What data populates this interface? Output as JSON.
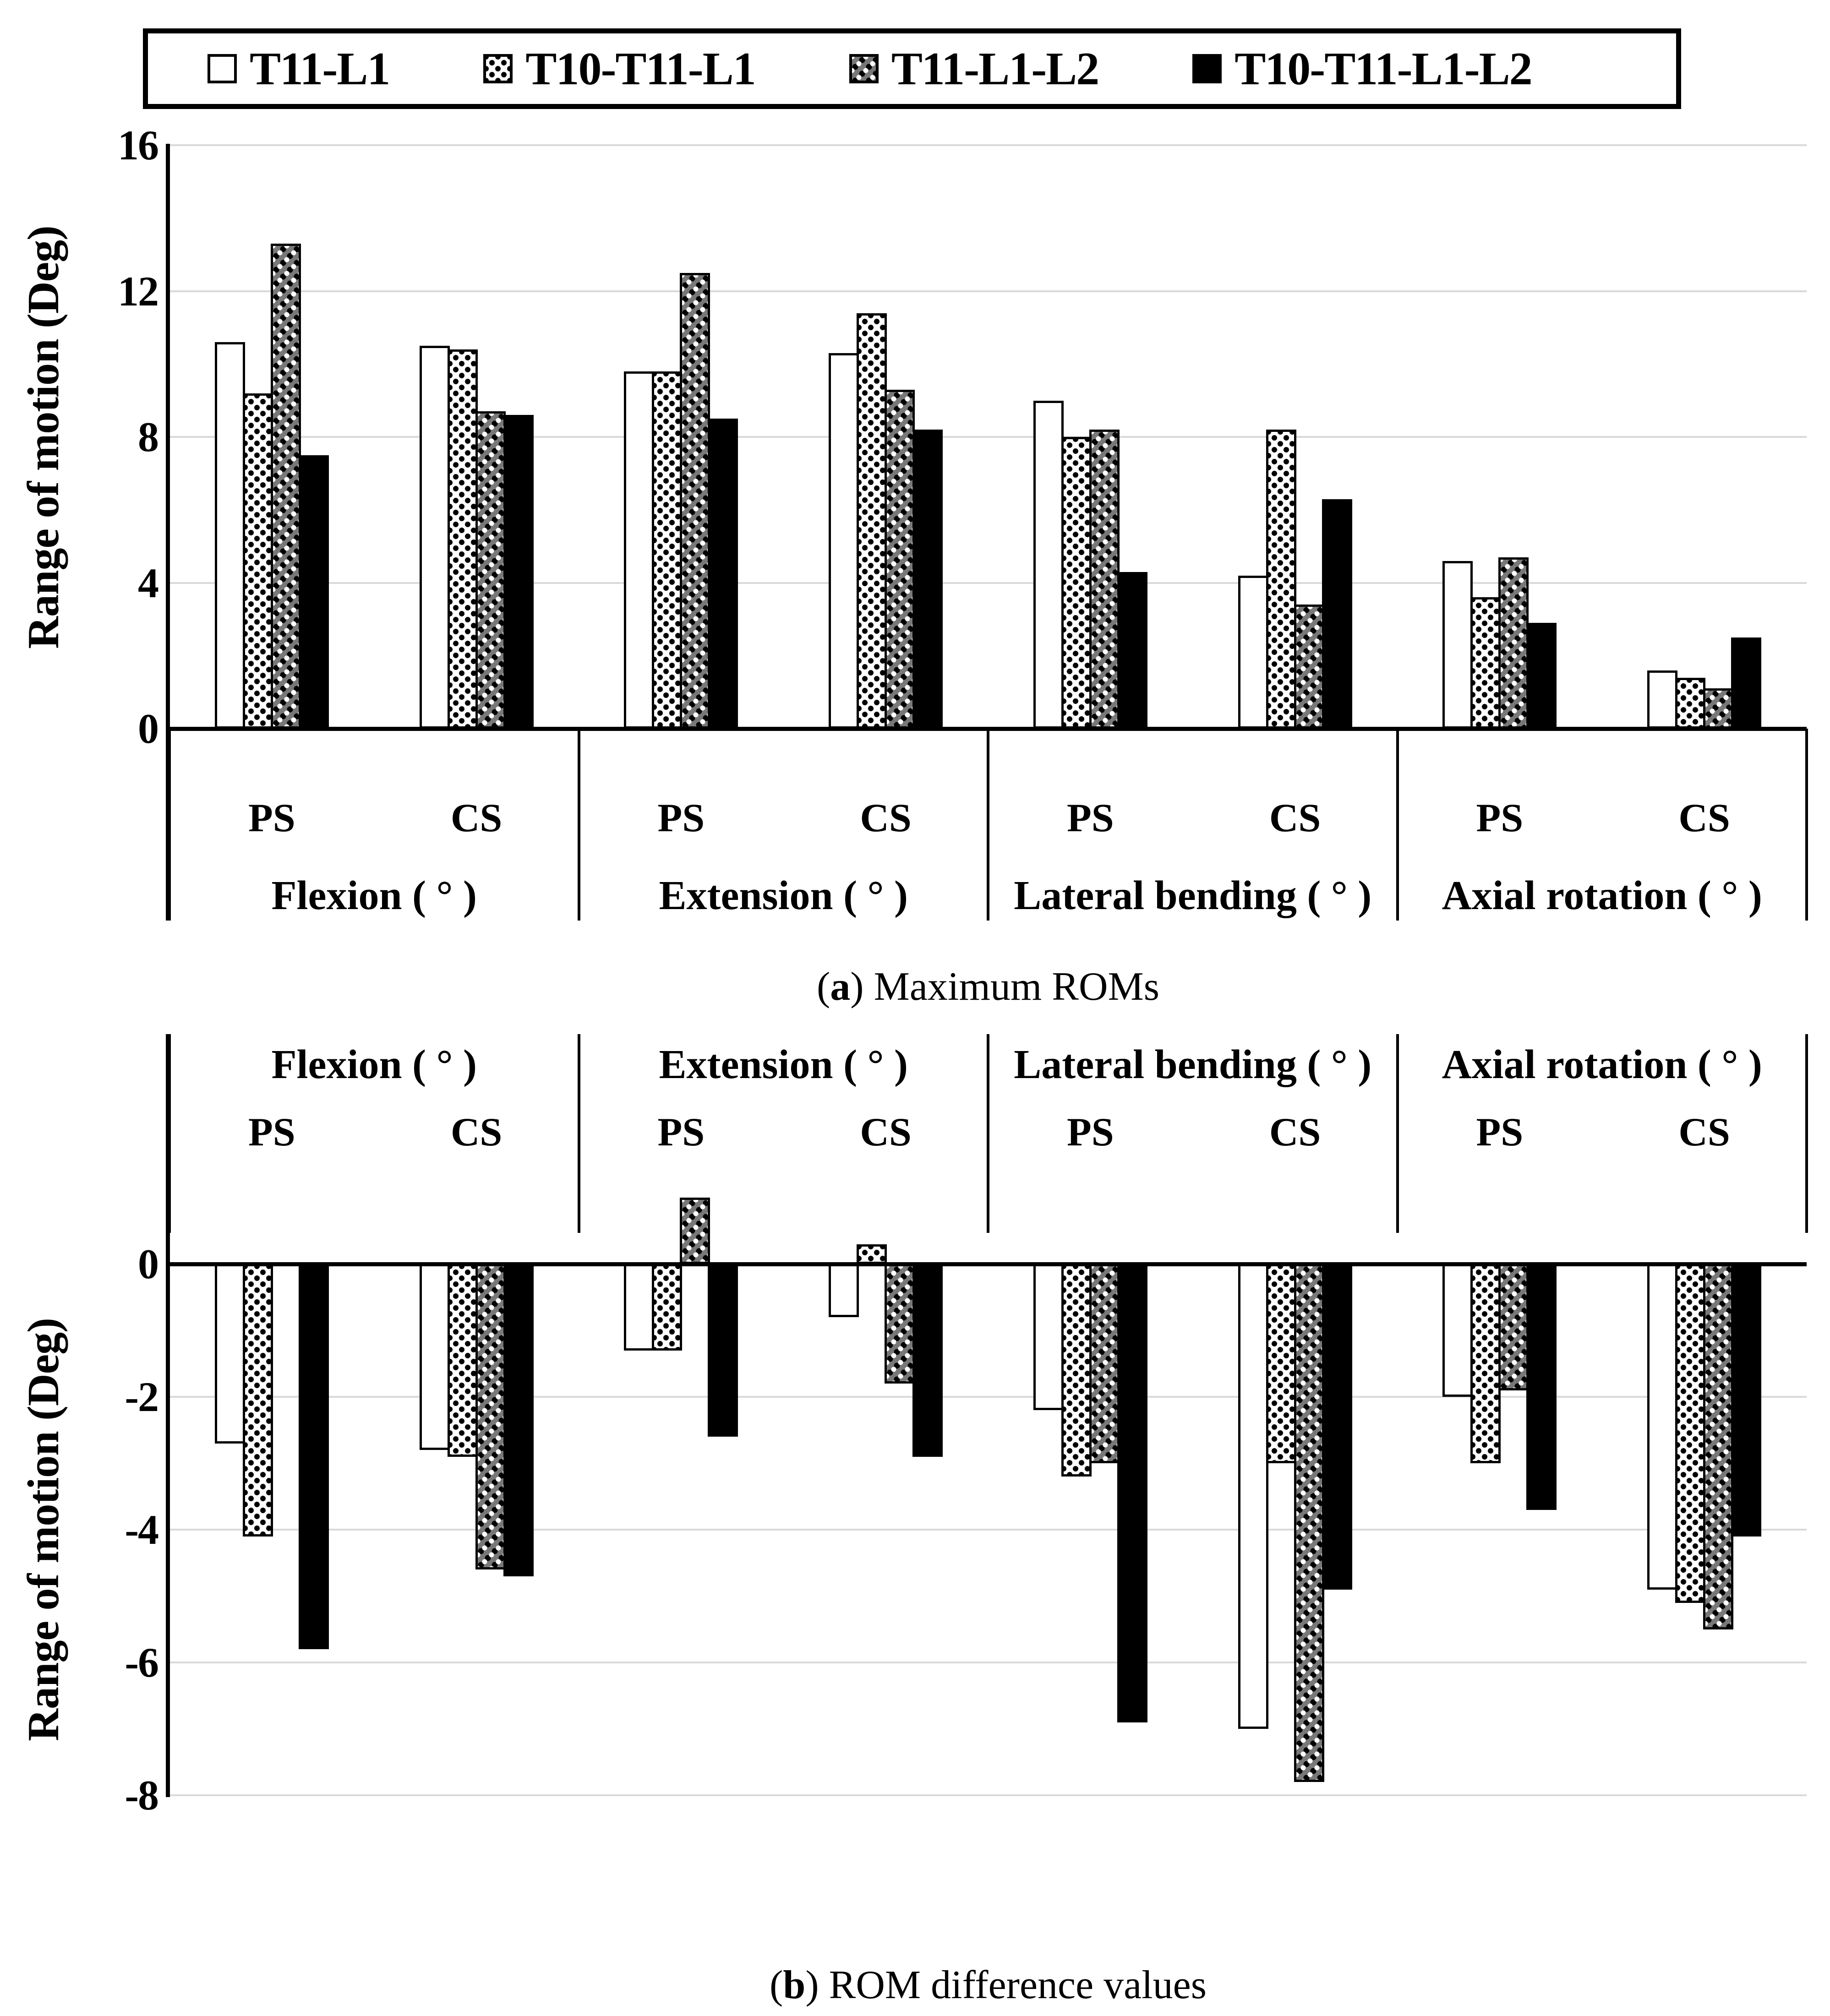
{
  "legend": {
    "items": [
      {
        "label": "T11-L1",
        "pattern": "white"
      },
      {
        "label": "T10-T11-L1",
        "pattern": "dots-light"
      },
      {
        "label": "T11-L1-L2",
        "pattern": "dots-dark"
      },
      {
        "label": "T10-T11-L1-L2",
        "pattern": "black"
      }
    ]
  },
  "groups": [
    "Flexion ( ° )",
    "Extension ( ° )",
    "Lateral bending ( ° )",
    "Axial rotation ( ° )"
  ],
  "subgroups": [
    "PS",
    "CS"
  ],
  "captions": {
    "a": {
      "letter": "a",
      "text": "Maximum ROMs"
    },
    "b": {
      "letter": "b",
      "text": "ROM difference values"
    }
  },
  "chart_data": [
    {
      "id": "a",
      "type": "bar",
      "title": "Maximum ROMs",
      "ylabel": "Range of motion (Deg)",
      "ylim": [
        0,
        16
      ],
      "yticks": [
        0,
        4,
        8,
        12,
        16
      ],
      "grid": true,
      "legend_position": "top",
      "categories": [
        "Flexion PS",
        "Flexion CS",
        "Extension PS",
        "Extension CS",
        "Lateral bending PS",
        "Lateral bending CS",
        "Axial rotation PS",
        "Axial rotation CS"
      ],
      "series": [
        {
          "name": "T11-L1",
          "values": [
            10.6,
            10.5,
            9.8,
            10.3,
            9.0,
            4.2,
            4.6,
            1.6
          ]
        },
        {
          "name": "T10-T11-L1",
          "values": [
            9.2,
            10.4,
            9.8,
            11.4,
            8.0,
            8.2,
            3.6,
            1.4
          ]
        },
        {
          "name": "T11-L1-L2",
          "values": [
            13.3,
            8.7,
            12.5,
            9.3,
            8.2,
            3.4,
            4.7,
            1.1
          ]
        },
        {
          "name": "T10-T11-L1-L2",
          "values": [
            7.5,
            8.6,
            8.5,
            8.2,
            4.3,
            6.3,
            2.9,
            2.5
          ]
        }
      ]
    },
    {
      "id": "b",
      "type": "bar",
      "title": "ROM difference values",
      "ylabel": "Range of motion (Deg)",
      "ylim": [
        -8,
        1.2
      ],
      "yticks": [
        0,
        -2,
        -4,
        -6,
        -8
      ],
      "grid": true,
      "categories": [
        "Flexion PS",
        "Flexion CS",
        "Extension PS",
        "Extension CS",
        "Lateral bending PS",
        "Lateral bending CS",
        "Axial rotation PS",
        "Axial rotation CS"
      ],
      "series": [
        {
          "name": "T11-L1",
          "values": [
            -2.7,
            -2.8,
            -1.3,
            -0.8,
            -2.2,
            -7.0,
            -2.0,
            -4.9
          ]
        },
        {
          "name": "T10-T11-L1",
          "values": [
            -4.1,
            -2.9,
            -1.3,
            0.3,
            -3.2,
            -3.0,
            -3.0,
            -5.1
          ]
        },
        {
          "name": "T11-L1-L2",
          "values": [
            0,
            -4.6,
            1.0,
            -1.8,
            -3.0,
            -7.8,
            -1.9,
            -5.5
          ]
        },
        {
          "name": "T10-T11-L1-L2",
          "values": [
            -5.8,
            -4.7,
            -2.6,
            -2.9,
            -6.9,
            -4.9,
            -3.7,
            -4.1
          ]
        }
      ]
    }
  ]
}
